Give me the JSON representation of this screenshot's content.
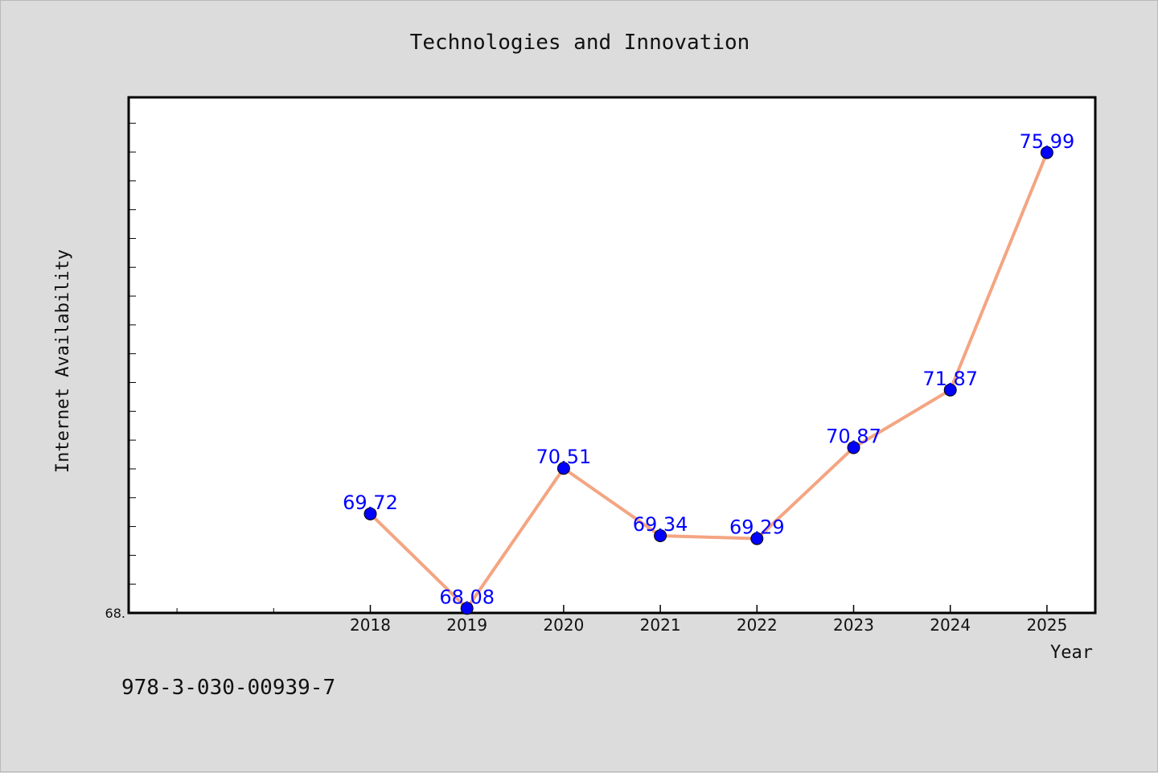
{
  "chart_data": {
    "type": "line",
    "title": "Technologies and Innovation",
    "xlabel": "Year",
    "ylabel": "Internet Availability",
    "x": [
      "2018",
      "2019",
      "2020",
      "2021",
      "2022",
      "2023",
      "2024",
      "2025"
    ],
    "series": [
      {
        "values": [
          69.72,
          68.08,
          70.51,
          69.34,
          69.29,
          70.87,
          71.87,
          75.99
        ]
      }
    ],
    "data_labels": [
      "69.72",
      "68.08",
      "70.51",
      "69.34",
      "69.29",
      "70.87",
      "71.87",
      "75.99"
    ],
    "y_tick_labels": [
      "68."
    ],
    "ylim": [
      68.0,
      76.95
    ],
    "xlim": [
      2015.5,
      2025.5
    ],
    "grid": false,
    "colors": {
      "line": "#f4a582",
      "marker": "#0000ff",
      "data_label": "#0000ff"
    }
  },
  "footer": {
    "isbn": "978-3-030-00939-7"
  }
}
